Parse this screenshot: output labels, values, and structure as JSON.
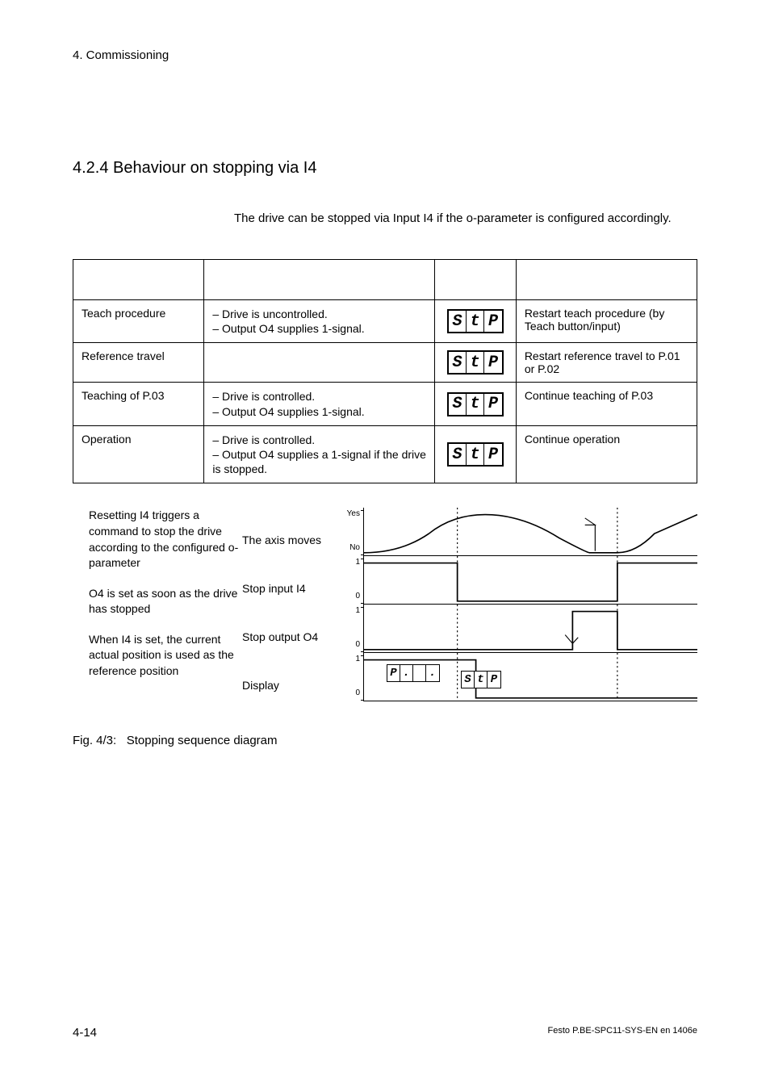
{
  "header": "4. Commissioning",
  "section_number": "4.2.4",
  "section_title": "Behaviour on stopping via I4",
  "intro": "The drive can be stopped via Input I4 if the o-parameter is configured accordingly.",
  "table": {
    "rows": [
      {
        "col1": "Teach procedure",
        "col2_items": [
          "Drive is uncontrolled.",
          "Output O4 supplies 1-signal."
        ],
        "display": [
          "S",
          "t",
          "P"
        ],
        "col4": "Restart teach procedure (by Teach button/input)"
      },
      {
        "col1": "Reference travel",
        "col2_items": [],
        "display": [
          "S",
          "t",
          "P"
        ],
        "col4": "Restart reference travel to P.01 or P.02"
      },
      {
        "col1": "Teaching of P.03",
        "col2_items": [
          "Drive is controlled.",
          "Output O4 supplies 1-signal."
        ],
        "display": [
          "S",
          "t",
          "P"
        ],
        "col4": "Continue teaching of P.03"
      },
      {
        "col1": "Operation",
        "col2_items": [
          "Drive is controlled.",
          "Output O4 supplies a 1-signal if the drive is stopped."
        ],
        "display": [
          "S",
          "t",
          "P"
        ],
        "col4": "Continue operation"
      }
    ]
  },
  "diagram": {
    "left_paragraphs": [
      "Resetting I4 triggers a command to stop the drive according to the configured o-parameter",
      "O4 is set as soon as the drive has stopped",
      "When I4 is set, the current actual position is used as the reference position"
    ],
    "row_labels": [
      "The axis moves",
      "Stop input I4",
      "Stop output O4",
      "Display"
    ],
    "y_labels": [
      [
        "Yes",
        "No"
      ],
      [
        "1",
        "0"
      ],
      [
        "1",
        "0"
      ],
      [
        "1",
        "0"
      ]
    ],
    "display1": [
      "P",
      ".",
      "",
      "."
    ],
    "display2": [
      "S",
      "t",
      "P"
    ],
    "vlines": [
      0.28,
      0.76
    ],
    "colors": {
      "line": "#000000",
      "dashed": "#888888"
    }
  },
  "fig_caption_label": "Fig. 4/3:",
  "fig_caption_text": "Stopping sequence diagram",
  "footer": {
    "page": "4-14",
    "doc": "Festo  P.BE-SPC11-SYS-EN  en 1406e"
  }
}
